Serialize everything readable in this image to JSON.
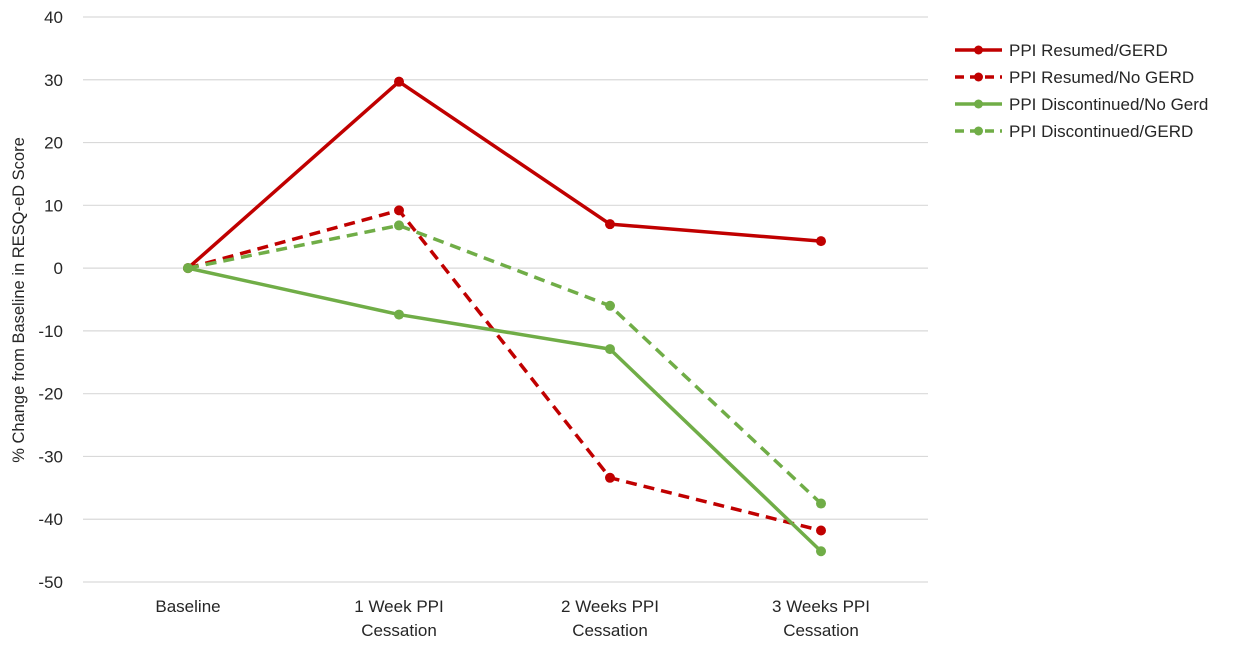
{
  "chart_data": {
    "type": "line",
    "title": "",
    "xlabel": "",
    "ylabel": "% Change from Baseline in RESQ-eD Score",
    "ylim": [
      -50,
      40
    ],
    "yticks": [
      40,
      30,
      20,
      10,
      0,
      -10,
      -20,
      -30,
      -40,
      -50
    ],
    "grid": true,
    "legend_position": "right",
    "categories": [
      [
        "Baseline"
      ],
      [
        "1 Week PPI",
        "Cessation"
      ],
      [
        "2 Weeks PPI",
        "Cessation"
      ],
      [
        "3 Weeks PPI",
        "Cessation"
      ]
    ],
    "series": [
      {
        "name": "PPI Resumed/GERD",
        "values": [
          0,
          29.7,
          7.0,
          4.3
        ],
        "color": "#c00000",
        "dash": "solid"
      },
      {
        "name": "PPI Resumed/No GERD",
        "values": [
          0,
          9.2,
          -33.4,
          -41.8
        ],
        "color": "#c00000",
        "dash": "dashed"
      },
      {
        "name": "PPI Discontinued/No Gerd",
        "values": [
          0,
          -7.4,
          -12.9,
          -45.1
        ],
        "color": "#70ad47",
        "dash": "solid"
      },
      {
        "name": "PPI Discontinued/GERD",
        "values": [
          0,
          6.8,
          -6.0,
          -37.5
        ],
        "color": "#70ad47",
        "dash": "dashed"
      }
    ]
  }
}
